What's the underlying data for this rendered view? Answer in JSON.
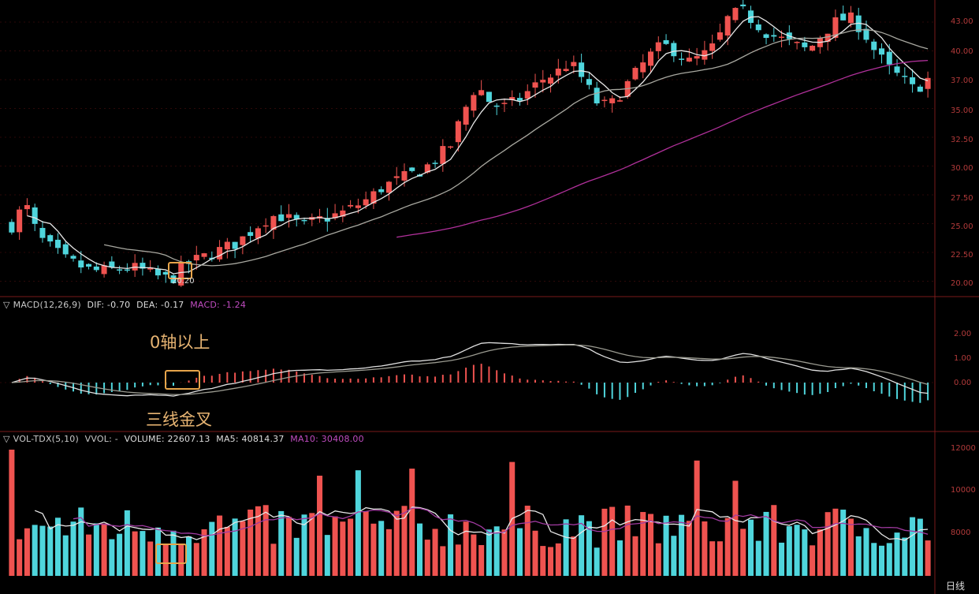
{
  "colors": {
    "up": "#ef5350",
    "down": "#4fd5dc",
    "ma_fast": "#e8e8e8",
    "ma_mid": "#a8a8a0",
    "ma_long": "#b0309a",
    "grid": "#5a1212",
    "highlight": "#e7a44a"
  },
  "price_panel": {
    "axis_ticks": [
      "43.00",
      "40.00",
      "37.00",
      "35.00",
      "32.50",
      "30.00",
      "27.50",
      "25.00",
      "22.50",
      "20.00"
    ],
    "low_label": "20.20"
  },
  "macd_panel": {
    "title": "MACD(12,26,9)",
    "dif_label": "DIF: -0.70",
    "dea_label": "DEA: -0.17",
    "macd_label": "MACD: -1.24",
    "axis_ticks": [
      "2.00",
      "1.00",
      "0.00"
    ],
    "annotation_top": "0轴以上",
    "annotation_bottom": "三线金叉"
  },
  "volume_panel": {
    "title": "VOL-TDX(5,10)",
    "vvol_label": "VVOL: -",
    "volume_label": "VOLUME: 22607.13",
    "ma5_label": "MA5: 40814.37",
    "ma10_label": "MA10: 30408.00",
    "axis_ticks": [
      "12000",
      "10000",
      "8000"
    ]
  },
  "period_label": "日线",
  "chart_data": [
    {
      "type": "candlestick",
      "title": "",
      "x_count": 120,
      "y_axis_ticks": [
        43.0,
        40.0,
        37.0,
        35.0,
        32.5,
        30.0,
        27.5,
        25.0,
        22.5,
        20.0
      ],
      "lowest_price": 20.2,
      "description_series": [
        {
          "name": "MA-fast",
          "trend": "follows price"
        },
        {
          "name": "MA-mid",
          "trend": "smoothed"
        },
        {
          "name": "MA-long",
          "trend": "rising from mid-chart"
        }
      ],
      "close_path": [
        25.0,
        27.0,
        24.0,
        23.0,
        22.0,
        21.5,
        21.0,
        21.0,
        21.2,
        21.3,
        21.0,
        20.5,
        20.2,
        21.5,
        22.0,
        22.5,
        23.0,
        23.5,
        24.5,
        25.5,
        26.0,
        25.5,
        25.0,
        25.5,
        25.8,
        26.2,
        26.8,
        27.5,
        28.5,
        29.0,
        29.5,
        30.0,
        31.0,
        32.0,
        35.0,
        37.5,
        36.0,
        35.5,
        36.0,
        37.0,
        38.0,
        38.5,
        39.5,
        38.0,
        36.0,
        35.5,
        37.0,
        38.5,
        40.0,
        41.0,
        40.5,
        39.5,
        40.0,
        41.0,
        43.5,
        44.0,
        43.0,
        42.0,
        41.5,
        41.0,
        40.5,
        42.0,
        43.0,
        43.5,
        42.5,
        40.5,
        39.0,
        38.0,
        37.0,
        38.0
      ]
    },
    {
      "type": "bar",
      "title": "MACD(12,26,9)",
      "series": [
        {
          "name": "DIF",
          "last": -0.7
        },
        {
          "name": "DEA",
          "last": -0.17
        },
        {
          "name": "MACD",
          "last": -1.24
        }
      ],
      "y_axis_ticks": [
        2.0,
        1.0,
        0.0
      ]
    },
    {
      "type": "bar",
      "title": "VOL-TDX(5,10)",
      "series": [
        {
          "name": "VOLUME",
          "last": 22607.13
        },
        {
          "name": "MA5",
          "last": 40814.37
        },
        {
          "name": "MA10",
          "last": 30408.0
        }
      ],
      "y_axis_ticks": [
        12000,
        10000,
        8000
      ]
    }
  ]
}
